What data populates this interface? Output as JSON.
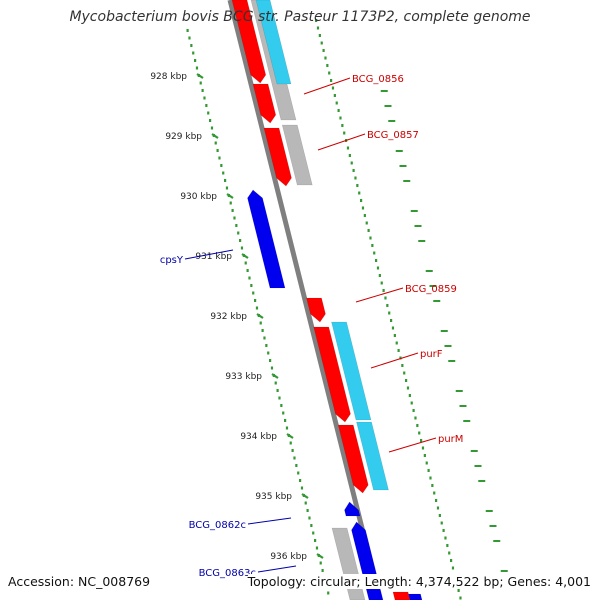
{
  "title": "Mycobacterium bovis BCG str. Pasteur 1173P2, complete genome",
  "accession": "Accession: NC_008769",
  "summary": "Topology: circular; Length: 4,374,522 bp; Genes: 4,001",
  "colors": {
    "backbone": "#7f7f7f",
    "scale": "#339933",
    "forward_cds": "#ff0000",
    "reverse_cds": "#0000ee",
    "rna_or_blast": "#33ccee",
    "other_feature": "#b8b8b8",
    "forward_label": "#cc0000",
    "reverse_label": "#0000aa"
  },
  "scale_ticks": [
    {
      "kbp": 928,
      "label": "928 kbp"
    },
    {
      "kbp": 929,
      "label": "929 kbp"
    },
    {
      "kbp": 930,
      "label": "930 kbp"
    },
    {
      "kbp": 931,
      "label": "931 kbp"
    },
    {
      "kbp": 932,
      "label": "932 kbp"
    },
    {
      "kbp": 933,
      "label": "933 kbp"
    },
    {
      "kbp": 934,
      "label": "934 kbp"
    },
    {
      "kbp": 935,
      "label": "935 kbp"
    },
    {
      "kbp": 936,
      "label": "936 kbp"
    }
  ],
  "gene_labels": [
    {
      "name": "BCG_0856",
      "strand": "forward"
    },
    {
      "name": "BCG_0857",
      "strand": "forward"
    },
    {
      "name": "cpsY",
      "strand": "reverse"
    },
    {
      "name": "BCG_0859",
      "strand": "forward"
    },
    {
      "name": "purF",
      "strand": "forward"
    },
    {
      "name": "purM",
      "strand": "forward"
    },
    {
      "name": "BCG_0862c",
      "strand": "reverse"
    },
    {
      "name": "BCG_0863c",
      "strand": "reverse"
    }
  ]
}
